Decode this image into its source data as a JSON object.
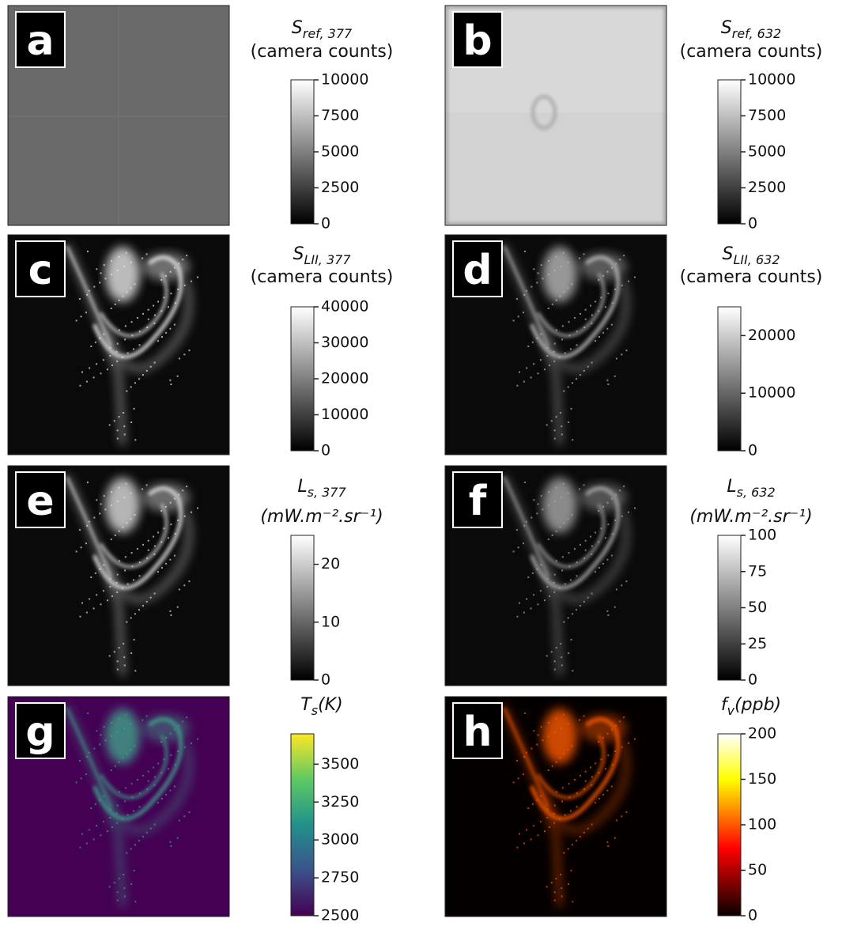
{
  "panels": [
    {
      "label": "a",
      "colorbar": {
        "symbol": "S",
        "subscript": "ref, 377",
        "unit": "(camera counts)",
        "unit_inline": false,
        "colormap": "gray",
        "lim": [
          0,
          10000
        ],
        "ticks": [
          0,
          2500,
          5000,
          7500,
          10000
        ]
      }
    },
    {
      "label": "b",
      "colorbar": {
        "symbol": "S",
        "subscript": "ref, 632",
        "unit": "(camera counts)",
        "unit_inline": false,
        "colormap": "gray",
        "lim": [
          0,
          10000
        ],
        "ticks": [
          0,
          2500,
          5000,
          7500,
          10000
        ]
      }
    },
    {
      "label": "c",
      "colorbar": {
        "symbol": "S",
        "subscript": "LII, 377",
        "unit": "(camera counts)",
        "unit_inline": false,
        "colormap": "gray",
        "lim": [
          0,
          40000
        ],
        "ticks": [
          0,
          10000,
          20000,
          30000,
          40000
        ]
      }
    },
    {
      "label": "d",
      "colorbar": {
        "symbol": "S",
        "subscript": "LII, 632",
        "unit": "(camera counts)",
        "unit_inline": false,
        "colormap": "gray",
        "lim": [
          0,
          25000
        ],
        "ticks": [
          0,
          10000,
          20000
        ]
      }
    },
    {
      "label": "e",
      "colorbar": {
        "symbol": "L",
        "subscript": "s, 377",
        "unit": "(mW.m⁻².sr⁻¹)",
        "unit_inline": false,
        "colormap": "gray",
        "lim": [
          0,
          25
        ],
        "ticks": [
          0,
          10,
          20
        ]
      }
    },
    {
      "label": "f",
      "colorbar": {
        "symbol": "L",
        "subscript": "s, 632",
        "unit": "(mW.m⁻².sr⁻¹)",
        "unit_inline": false,
        "colormap": "gray",
        "lim": [
          0,
          100
        ],
        "ticks": [
          0,
          25,
          50,
          75,
          100
        ]
      }
    },
    {
      "label": "g",
      "colorbar": {
        "symbol": "T",
        "subscript": "s",
        "unit": "(K)",
        "unit_inline": true,
        "colormap": "viridis",
        "lim": [
          2500,
          3700
        ],
        "ticks": [
          2500,
          2750,
          3000,
          3250,
          3500
        ]
      }
    },
    {
      "label": "h",
      "colorbar": {
        "symbol": "f",
        "subscript": "v",
        "unit": "(ppb)",
        "unit_inline": true,
        "colormap": "hot",
        "lim": [
          0,
          200
        ],
        "ticks": [
          0,
          50,
          100,
          150,
          200
        ]
      }
    }
  ]
}
